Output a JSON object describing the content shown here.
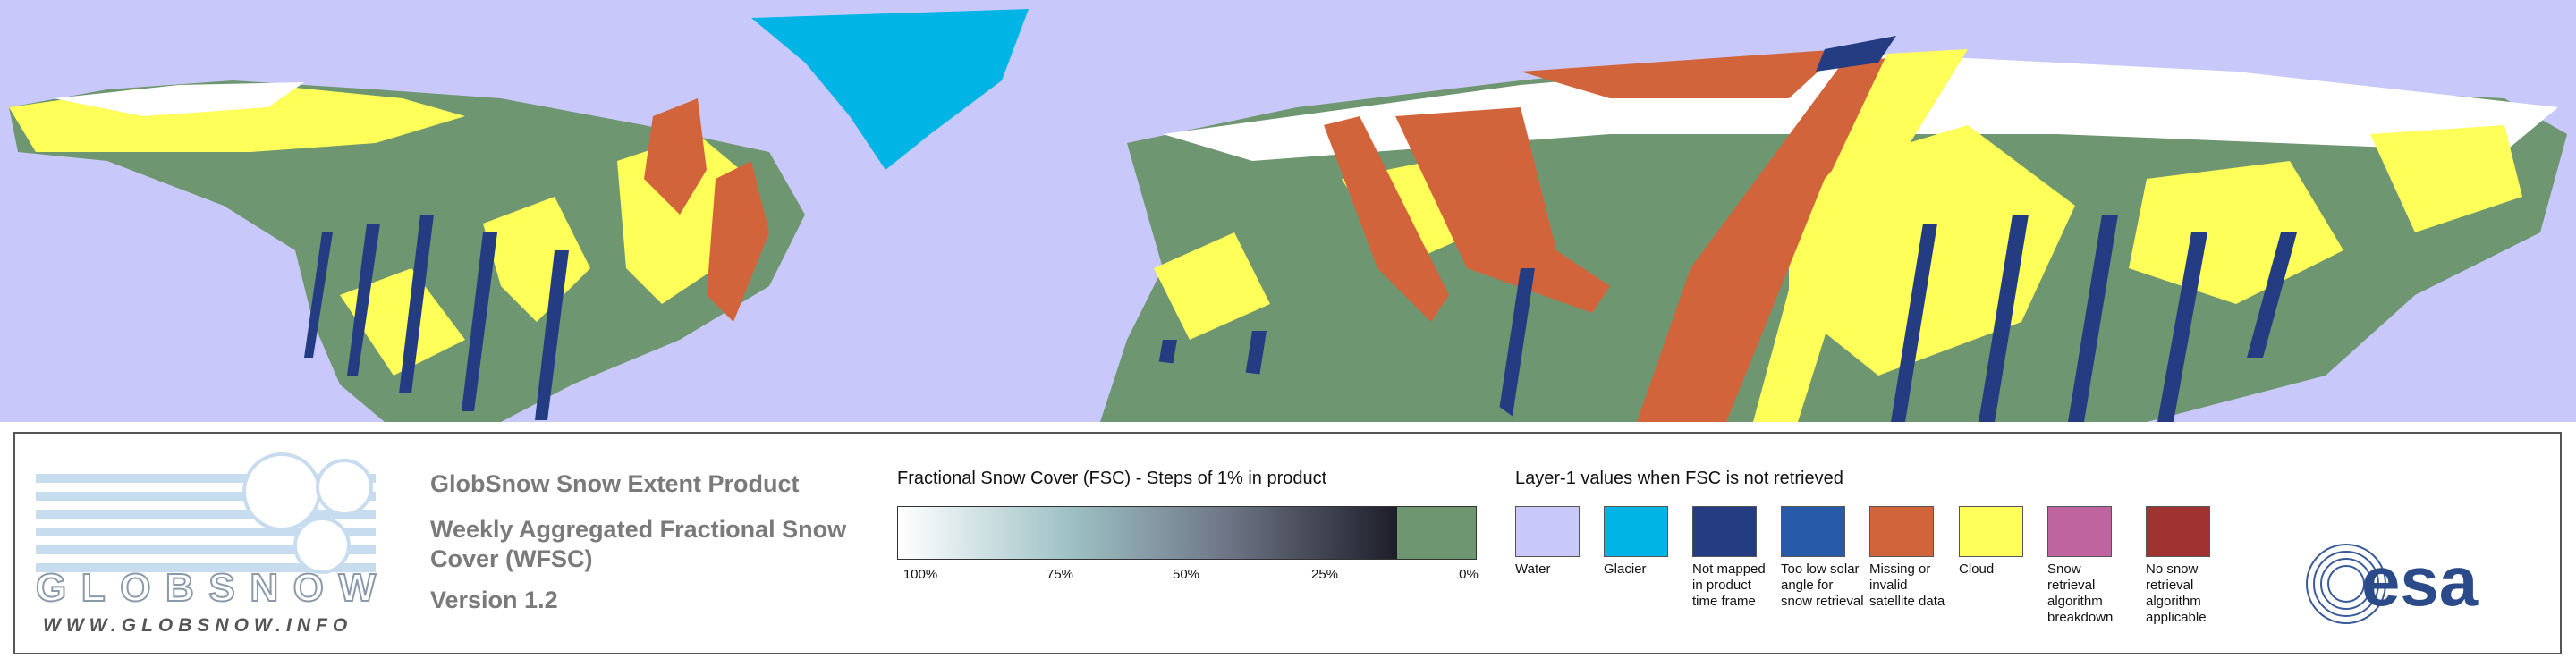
{
  "logo": {
    "name": "GLOBSNOW",
    "url": "WWW.GLOBSNOW.INFO"
  },
  "header": {
    "product": "GlobSnow Snow Extent Product",
    "title": "Weekly Aggregated Fractional Snow Cover (WFSC)",
    "version": "Version 1.2"
  },
  "fsc_scale": {
    "title": "Fractional Snow Cover (FSC) - Steps of 1% in product",
    "ticks": [
      "100%",
      "75%",
      "50%",
      "25%",
      "0%"
    ]
  },
  "layer1": {
    "title": "Layer-1 values when FSC is not retrieved",
    "classes": [
      {
        "label": "Water",
        "color": "#c8c8fa"
      },
      {
        "label": "Glacier",
        "color": "#00b4e6"
      },
      {
        "label": "Not mapped in product time frame",
        "color": "#233c82"
      },
      {
        "label": "Too low solar angle for snow retrieval",
        "color": "#285aaa"
      },
      {
        "label": "Missing or invalid satellite data",
        "color": "#d2643c"
      },
      {
        "label": "Cloud",
        "color": "#ffff5a"
      },
      {
        "label": "Snow retrieval algorithm breakdown",
        "color": "#c064a0"
      },
      {
        "label": "No snow retrieval algorithm applicable",
        "color": "#a03232"
      }
    ]
  },
  "esa": "esa"
}
